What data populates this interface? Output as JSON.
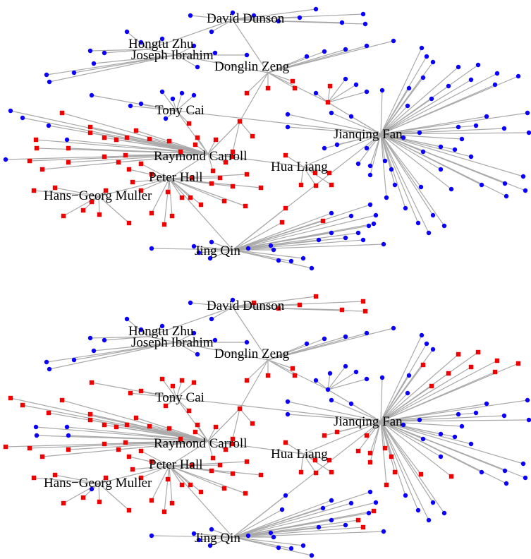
{
  "colors": {
    "blue_node": "#0a00ff",
    "red_node": "#f00000",
    "edge": "#a9a9a9"
  },
  "panels": [
    {
      "id": "top",
      "labels": [
        "David Dunson",
        "Hongtu Zhu",
        "Joseph Ibrahim",
        "Donglin Zeng",
        "Tony Cai",
        "Jianqing Fan",
        "Raymond Carroll",
        "Hua Liang",
        "Peter Hall",
        "Hans−Georg Muller",
        "Jing Qin"
      ]
    },
    {
      "id": "bottom",
      "labels": [
        "David Dunson",
        "Hongtu Zhu",
        "Joseph Ibrahim",
        "Donglin Zeng",
        "Tony Cai",
        "Jianqing Fan",
        "Raymond Carroll",
        "Hua Liang",
        "Peter Hall",
        "Hans−Georg Muller",
        "Jing Qin"
      ]
    }
  ]
}
